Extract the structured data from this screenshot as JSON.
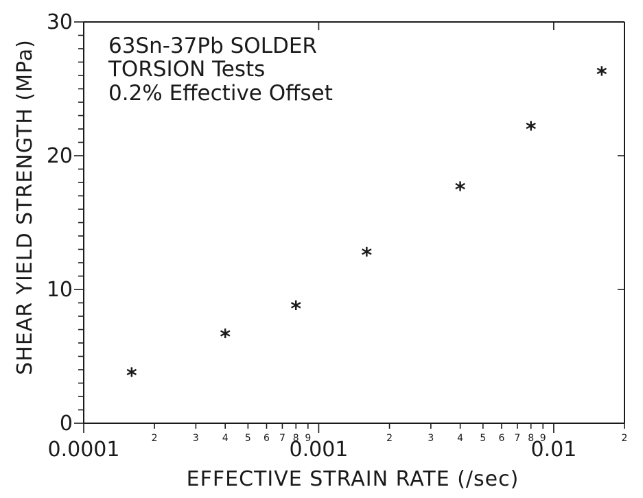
{
  "chart_data": {
    "type": "scatter",
    "title": "",
    "annotations": [
      "63Sn-37Pb SOLDER",
      "TORSION Tests",
      "0.2% Effective Offset"
    ],
    "xlabel": "EFFECTIVE STRAIN RATE (/sec)",
    "ylabel": "SHEAR YIELD STRENGTH (MPa)",
    "x_scale": "log",
    "xlim": [
      0.0001,
      0.02
    ],
    "ylim": [
      0,
      30
    ],
    "y_ticks": [
      0,
      10,
      20,
      30
    ],
    "y_tick_labels": [
      "0",
      "10",
      "20",
      "30"
    ],
    "x_major_ticks": [
      0.0001,
      0.001,
      0.01
    ],
    "x_major_tick_labels": [
      "0.0001",
      "0.001",
      "0.01"
    ],
    "x_minor_ticks": [
      0.0002,
      0.0003,
      0.0004,
      0.0005,
      0.0006,
      0.0007,
      0.0008,
      0.0009,
      0.002,
      0.003,
      0.004,
      0.005,
      0.006,
      0.007,
      0.008,
      0.009,
      0.02
    ],
    "x_minor_tick_labels": [
      "2",
      "3",
      "4",
      "5",
      "6",
      "7",
      "8",
      "9",
      "2",
      "3",
      "4",
      "5",
      "6",
      "7",
      "8",
      "9",
      "2"
    ],
    "marker_symbol": "*",
    "grid": false,
    "legend": "none",
    "series": [
      {
        "x": [
          0.00016,
          0.0004,
          0.0008,
          0.0016,
          0.004,
          0.008,
          0.016
        ],
        "y": [
          3.7,
          6.6,
          8.7,
          12.7,
          17.6,
          22.1,
          26.2
        ]
      }
    ]
  }
}
